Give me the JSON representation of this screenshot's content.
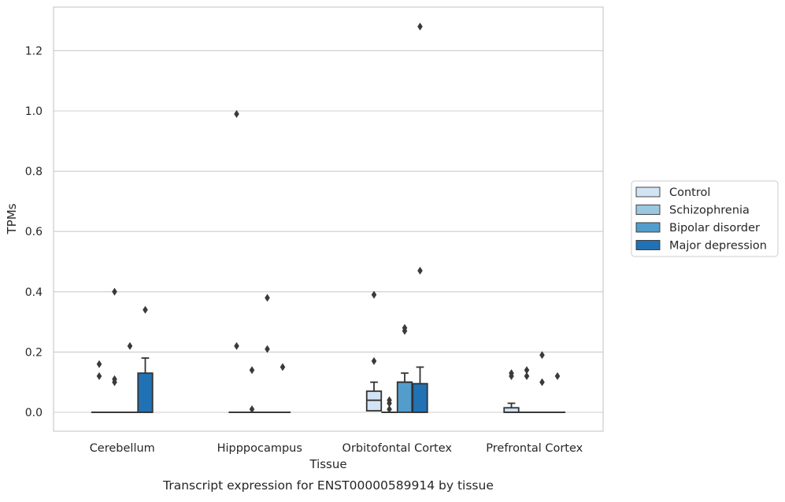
{
  "caption": "Transcript expression for ENST00000589914 by tissue",
  "colors": {
    "Control": "#d2e3f3",
    "Schizophrenia": "#9ac8e0",
    "Bipolar disorder": "#529dcc",
    "Major depression": "#2171b5",
    "edge": "#333333",
    "grid": "#cccccc",
    "frame": "#cccccc",
    "outlier": "#3a3a3a"
  },
  "chart_data": {
    "type": "box",
    "title": "",
    "xlabel": "Tissue",
    "ylabel": "TPMs",
    "ylim": [
      -0.063,
      1.352
    ],
    "yticks": [
      0.0,
      0.2,
      0.4,
      0.6,
      0.8,
      1.0,
      1.2
    ],
    "ytick_labels": [
      "0.0",
      "0.2",
      "0.4",
      "0.6",
      "0.8",
      "1.0",
      "1.2"
    ],
    "grid": "horizontal",
    "legend_position": "right",
    "categories": [
      "Cerebellum",
      "Hipppocampus",
      "Orbitofontal Cortex",
      "Prefrontal Cortex"
    ],
    "series": [
      {
        "name": "Control",
        "boxes": [
          {
            "q1": 0,
            "median": 0,
            "q3": 0,
            "whislo": 0,
            "whishi": 0,
            "fliers": [
              0.16,
              0.12
            ]
          },
          {
            "q1": 0,
            "median": 0,
            "q3": 0,
            "whislo": 0,
            "whishi": 0,
            "fliers": [
              0.99,
              0.22
            ]
          },
          {
            "q1": 0.005,
            "median": 0.04,
            "q3": 0.07,
            "whislo": 0,
            "whishi": 0.1,
            "fliers": [
              0.39,
              0.17
            ]
          },
          {
            "q1": 0,
            "median": 0,
            "q3": 0.015,
            "whislo": 0,
            "whishi": 0.03,
            "fliers": [
              0.13,
              0.12
            ]
          }
        ]
      },
      {
        "name": "Schizophrenia",
        "boxes": [
          {
            "q1": 0,
            "median": 0,
            "q3": 0,
            "whislo": 0,
            "whishi": 0,
            "fliers": [
              0.4,
              0.11,
              0.1
            ]
          },
          {
            "q1": 0,
            "median": 0,
            "q3": 0,
            "whislo": 0,
            "whishi": 0,
            "fliers": [
              0.14,
              0.01
            ]
          },
          {
            "q1": 0,
            "median": 0,
            "q3": 0,
            "whislo": 0,
            "whishi": 0,
            "fliers": [
              0.04,
              0.03,
              0.01
            ]
          },
          {
            "q1": 0,
            "median": 0,
            "q3": 0,
            "whislo": 0,
            "whishi": 0,
            "fliers": [
              0.14,
              0.12
            ]
          }
        ]
      },
      {
        "name": "Bipolar disorder",
        "boxes": [
          {
            "q1": 0,
            "median": 0,
            "q3": 0,
            "whislo": 0,
            "whishi": 0,
            "fliers": [
              0.22
            ]
          },
          {
            "q1": 0,
            "median": 0,
            "q3": 0,
            "whislo": 0,
            "whishi": 0,
            "fliers": [
              0.38,
              0.21
            ]
          },
          {
            "q1": 0,
            "median": 0.1,
            "q3": 0.1,
            "whislo": 0,
            "whishi": 0.13,
            "fliers": [
              0.28,
              0.27
            ]
          },
          {
            "q1": 0,
            "median": 0,
            "q3": 0,
            "whislo": 0,
            "whishi": 0,
            "fliers": [
              0.19,
              0.1
            ]
          }
        ]
      },
      {
        "name": "Major depression",
        "boxes": [
          {
            "q1": 0,
            "median": 0,
            "q3": 0.13,
            "whislo": 0,
            "whishi": 0.18,
            "fliers": [
              0.34
            ]
          },
          {
            "q1": 0,
            "median": 0,
            "q3": 0,
            "whislo": 0,
            "whishi": 0,
            "fliers": [
              0.15
            ]
          },
          {
            "q1": 0,
            "median": 0,
            "q3": 0.095,
            "whislo": 0,
            "whishi": 0.15,
            "fliers": [
              1.28,
              0.47
            ]
          },
          {
            "q1": 0,
            "median": 0,
            "q3": 0,
            "whislo": 0,
            "whishi": 0,
            "fliers": [
              0.12
            ]
          }
        ]
      }
    ]
  }
}
